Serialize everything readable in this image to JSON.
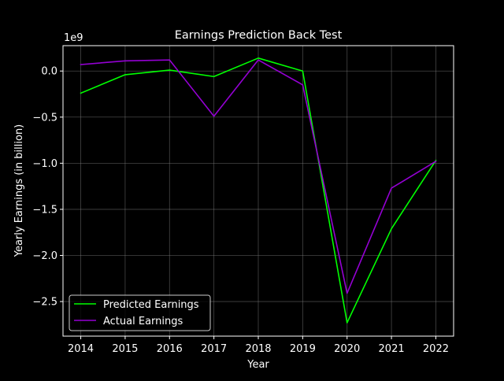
{
  "chart_data": {
    "type": "line",
    "title": "Earnings Prediction Back Test",
    "xlabel": "Year",
    "ylabel": "Yearly Earnings (in billion)",
    "y_offset_label": "1e9",
    "x": [
      2014,
      2015,
      2016,
      2017,
      2018,
      2019,
      2020,
      2021,
      2022
    ],
    "x_ticks": [
      2014,
      2015,
      2016,
      2017,
      2018,
      2019,
      2020,
      2021,
      2022
    ],
    "y_ticks": [
      0.0,
      -0.5,
      -1.0,
      -1.5,
      -2.0,
      -2.5
    ],
    "y_tick_labels": [
      "0.0",
      "−0.5",
      "−1.0",
      "−1.5",
      "−2.0",
      "−2.5"
    ],
    "xlim": [
      2013.6,
      2022.4
    ],
    "ylim": [
      -2.875,
      0.275
    ],
    "grid": true,
    "legend_position": "lower-left",
    "series": [
      {
        "name": "Predicted Earnings",
        "color": "#00ff00",
        "values": [
          -0.24,
          -0.04,
          0.01,
          -0.06,
          0.14,
          0.0,
          -2.73,
          -1.71,
          -0.97
        ]
      },
      {
        "name": "Actual Earnings",
        "color": "#9400d3",
        "values": [
          0.07,
          0.11,
          0.12,
          -0.49,
          0.12,
          -0.15,
          -2.41,
          -1.27,
          -0.98
        ]
      }
    ]
  }
}
